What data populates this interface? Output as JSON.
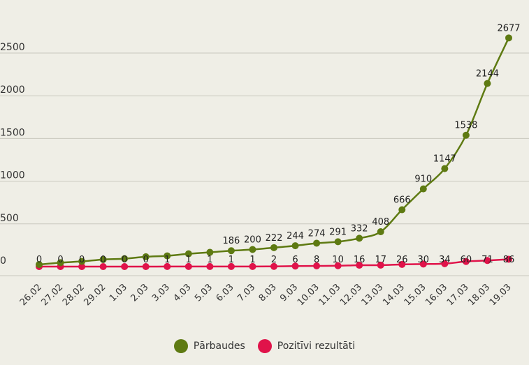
{
  "chart_data": {
    "type": "line",
    "title": "",
    "xlabel": "",
    "ylabel": "",
    "ylim": [
      0,
      2700
    ],
    "yticks": [
      0,
      500,
      1000,
      1500,
      2000,
      2500
    ],
    "ytick_labels": [
      "0",
      "500",
      "1000",
      "1500",
      "2000",
      "2500"
    ],
    "grid": true,
    "legend_position": "bottom",
    "categories": [
      "26.02",
      "27.02",
      "28.02",
      "29.02",
      "1.03",
      "2.03",
      "3.03",
      "4.03",
      "5.03",
      "6.03",
      "7.03",
      "8.03",
      "9.03",
      "10.03",
      "11.03",
      "12.03",
      "13.03",
      "14.03",
      "15.03",
      "16.03",
      "17.03",
      "18.03",
      "19.03"
    ],
    "series": [
      {
        "name": "Pārbaudes",
        "color": "#5e7a12",
        "values": [
          24,
          46,
          61,
          83,
          93,
          115,
          126,
          150,
          167,
          186,
          200,
          222,
          244,
          274,
          291,
          332,
          408,
          666,
          910,
          1147,
          1538,
          2144,
          2677
        ],
        "labels": [
          "",
          "",
          "",
          "",
          "",
          "",
          "",
          "",
          "",
          "186",
          "200",
          "222",
          "244",
          "274",
          "291",
          "332",
          "408",
          "666",
          "910",
          "1147",
          "1538",
          "2144",
          "2677"
        ]
      },
      {
        "name": "Pozitīvi rezultāti",
        "color": "#e0134a",
        "values": [
          0,
          0,
          0,
          0,
          0,
          0,
          1,
          1,
          1,
          1,
          1,
          2,
          6,
          8,
          10,
          16,
          17,
          26,
          30,
          34,
          60,
          71,
          86
        ],
        "labels": [
          "0",
          "0",
          "0",
          "0",
          "0",
          "0",
          "1",
          "1",
          "1",
          "1",
          "1",
          "2",
          "6",
          "8",
          "10",
          "16",
          "17",
          "26",
          "30",
          "34",
          "60",
          "71",
          "86"
        ]
      }
    ]
  }
}
